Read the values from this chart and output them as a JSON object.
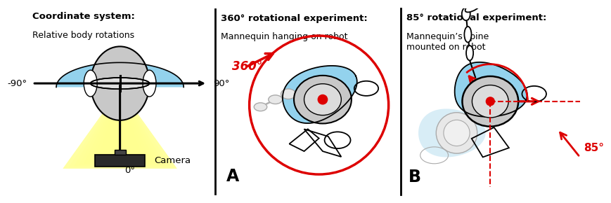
{
  "title_left_bold": "Coordinate system:",
  "title_left_normal": "Relative body rotations",
  "title_mid_bold": "360° rotational experiment:",
  "title_mid_normal": "Mannequin hanging on robot",
  "title_right_bold": "85° rotational experiment:",
  "title_right_normal": "Mannequin’s spine\nmounted on robot",
  "label_neg90": "-90°",
  "label_90": "90°",
  "label_0": "0°",
  "label_camera": "Camera",
  "label_360": "360°",
  "label_85": "85°",
  "label_A": "A",
  "label_B": "B",
  "bg_color": "#ffffff",
  "blue_color": "#87ceeb",
  "light_blue": "#b8dff0",
  "gray_color": "#c8c8c8",
  "light_gray": "#e0e0e0",
  "red_color": "#dd0000",
  "yellow_color": "#ffff88",
  "black_color": "#000000"
}
